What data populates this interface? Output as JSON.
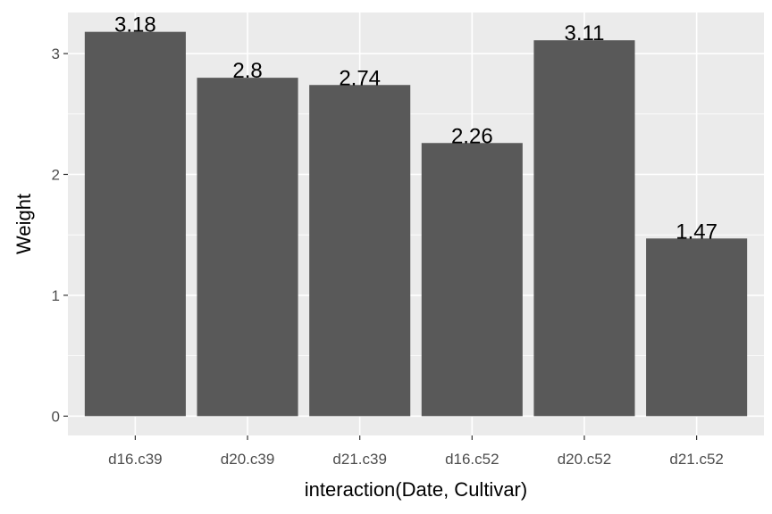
{
  "chart_data": {
    "type": "bar",
    "categories": [
      "d16.c39",
      "d20.c39",
      "d21.c39",
      "d16.c52",
      "d20.c52",
      "d21.c52"
    ],
    "values": [
      3.18,
      2.8,
      2.74,
      2.26,
      3.11,
      1.47
    ],
    "data_labels": [
      "3.18",
      "2.8",
      "2.74",
      "2.26",
      "3.11",
      "1.47"
    ],
    "xlabel": "interaction(Date, Cultivar)",
    "ylabel": "Weight",
    "ylim": [
      -0.16,
      3.34
    ],
    "y_ticks": [
      0,
      1,
      2,
      3
    ],
    "grid": true,
    "legend": "none",
    "colors": {
      "panel": "#ebebeb",
      "grid": "#ffffff",
      "bar": "#595959",
      "tick_text": "#4d4d4d",
      "tick_mark": "#333333"
    }
  }
}
